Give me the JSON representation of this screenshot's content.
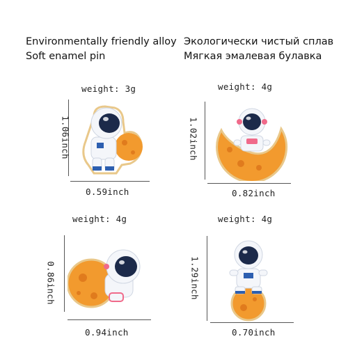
{
  "header": {
    "en_line1": "Environmentally friendly alloy",
    "en_line2": "Soft enamel pin",
    "ru_line1": "Экологически чистый сплав",
    "ru_line2": "Мягкая эмалевая булавка"
  },
  "pins": [
    {
      "weight": "weight: 3g",
      "height": "1.06inch",
      "width": "0.59inch",
      "icon": "astronaut-with-planet-icon"
    },
    {
      "weight": "weight: 4g",
      "height": "1.02inch",
      "width": "0.82inch",
      "icon": "astronaut-on-moon-icon"
    },
    {
      "weight": "weight: 4g",
      "height": "0.86inch",
      "width": "0.94inch",
      "icon": "astronaut-resting-on-planet-icon"
    },
    {
      "weight": "weight: 4g",
      "height": "1.29inch",
      "width": "0.70inch",
      "icon": "astronaut-sitting-on-planet-icon"
    }
  ],
  "colors": {
    "orange": "#f29a2e",
    "dark_orange": "#e07b1d",
    "helmet_visor": "#1c2a4a",
    "outline": "#e9c88a",
    "accent_blue": "#2d5fb0",
    "accent_pink": "#f06a8a"
  }
}
